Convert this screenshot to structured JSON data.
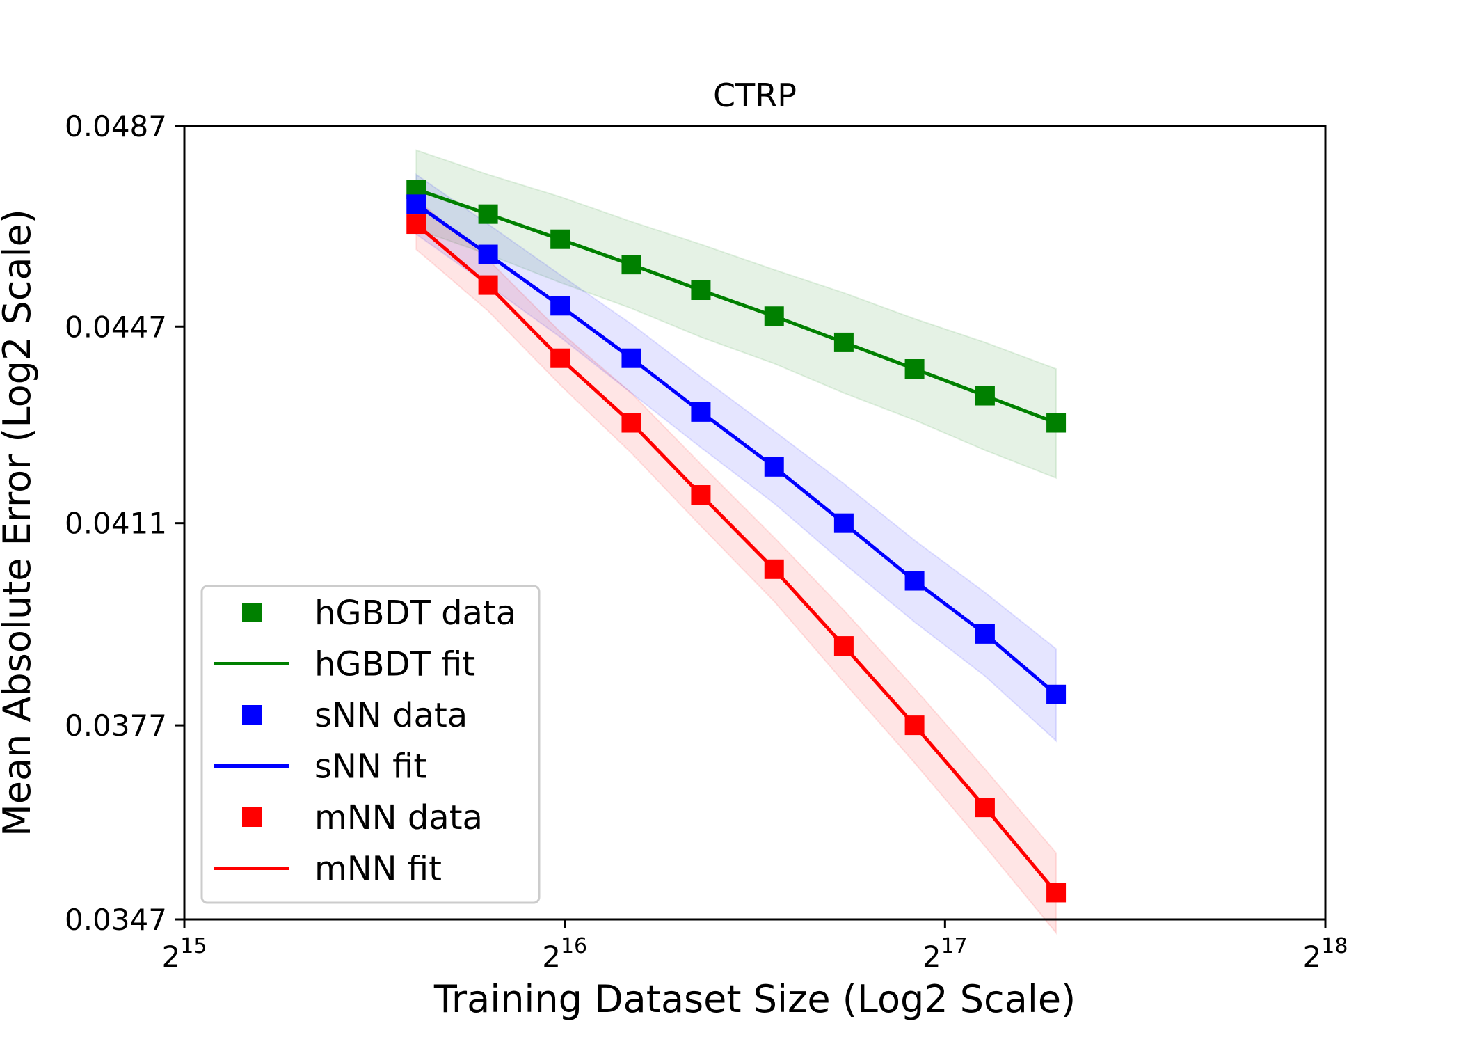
{
  "chart_data": {
    "type": "line",
    "title": "CTRP",
    "xlabel": "Training Dataset Size (Log2 Scale)",
    "ylabel": "Mean Absolute Error (Log2 Scale)",
    "x_scale": "log2",
    "y_scale": "log2",
    "xlim": [
      32768,
      262144
    ],
    "ylim": [
      0.0347,
      0.0487
    ],
    "x_ticks": [
      {
        "value": 32768,
        "base": "2",
        "exp": "15"
      },
      {
        "value": 65536,
        "base": "2",
        "exp": "16"
      },
      {
        "value": 131072,
        "base": "2",
        "exp": "17"
      },
      {
        "value": 262144,
        "base": "2",
        "exp": "18"
      }
    ],
    "y_ticks": [
      {
        "value": 0.0347,
        "label": "0.0347"
      },
      {
        "value": 0.0377,
        "label": "0.0377"
      },
      {
        "value": 0.0411,
        "label": "0.0411"
      },
      {
        "value": 0.0447,
        "label": "0.0447"
      },
      {
        "value": 0.0487,
        "label": "0.0487"
      }
    ],
    "x": [
      50000,
      57000,
      65000,
      74000,
      84000,
      96000,
      109000,
      124000,
      141000,
      160500
    ],
    "grid": false,
    "legend_position": "lower-left",
    "series": [
      {
        "name": "hGBDT",
        "data_label": "hGBDT data",
        "fit_label": "hGBDT fit",
        "color": "#008000",
        "values": [
          0.0474,
          0.0469,
          0.0464,
          0.0459,
          0.0454,
          0.0449,
          0.0444,
          0.0439,
          0.0434,
          0.0429
        ],
        "band": [
          0.0016,
          0.0016,
          0.0017,
          0.0017,
          0.0018,
          0.0018,
          0.0019,
          0.0019,
          0.002,
          0.002
        ]
      },
      {
        "name": "sNN",
        "data_label": "sNN data",
        "fit_label": "sNN fit",
        "color": "#0000ff",
        "values": [
          0.0471,
          0.0461,
          0.0451,
          0.0441,
          0.0431,
          0.0421,
          0.0411,
          0.0401,
          0.0392,
          0.0382
        ],
        "band": [
          0.0012,
          0.0012,
          0.0012,
          0.0013,
          0.0013,
          0.0013,
          0.0014,
          0.0014,
          0.0014,
          0.0015
        ]
      },
      {
        "name": "mNN",
        "data_label": "mNN data",
        "fit_label": "mNN fit",
        "color": "#ff0000",
        "values": [
          0.0467,
          0.0455,
          0.0441,
          0.0429,
          0.0416,
          0.0403,
          0.039,
          0.0377,
          0.0364,
          0.0351
        ],
        "band": [
          0.001,
          0.001,
          0.001,
          0.0011,
          0.0011,
          0.0011,
          0.0012,
          0.0012,
          0.0012,
          0.0012
        ]
      }
    ]
  }
}
